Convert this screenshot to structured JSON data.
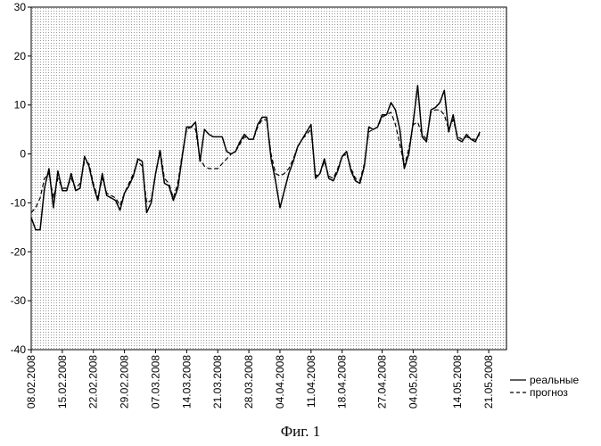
{
  "chart_data": {
    "type": "line",
    "title": "",
    "xlabel": "",
    "ylabel": "",
    "ylim": [
      -40,
      30
    ],
    "yticks": [
      30,
      20,
      10,
      0,
      -10,
      -20,
      -30,
      -40
    ],
    "xlim": [
      "08.02.2008",
      "25.05.2008"
    ],
    "xtick_labels": [
      "08.02.2008",
      "15.02.2008",
      "22.02.2008",
      "29.02.2008",
      "07.03.2008",
      "14.03.2008",
      "21.03.2008",
      "28.03.2008",
      "04.04.2008",
      "11.04.2008",
      "18.04.2008",
      "27.04.2008",
      "04.05.2008",
      "14.05.2008",
      "21.05.2008"
    ],
    "grid": "dense dotted",
    "legend_position": "right-bottom, outside plot",
    "colors": {
      "series": "#000000",
      "grid": "#9a9a9a",
      "background": "#ffffff"
    },
    "series": [
      {
        "name": "реальные",
        "style": "solid",
        "points": [
          [
            "08.02.2008",
            -13
          ],
          [
            "09.02.2008",
            -15.5
          ],
          [
            "10.02.2008",
            -15.5
          ],
          [
            "11.02.2008",
            -7
          ],
          [
            "12.02.2008",
            -3
          ],
          [
            "13.02.2008",
            -11
          ],
          [
            "14.02.2008",
            -3.5
          ],
          [
            "15.02.2008",
            -7.5
          ],
          [
            "16.02.2008",
            -7.5
          ],
          [
            "17.02.2008",
            -4
          ],
          [
            "18.02.2008",
            -7.5
          ],
          [
            "19.02.2008",
            -7
          ],
          [
            "20.02.2008",
            -0.5
          ],
          [
            "21.02.2008",
            -2.5
          ],
          [
            "22.02.2008",
            -6.5
          ],
          [
            "23.02.2008",
            -9.5
          ],
          [
            "24.02.2008",
            -4
          ],
          [
            "25.02.2008",
            -8.5
          ],
          [
            "26.02.2008",
            -9
          ],
          [
            "27.02.2008",
            -9.5
          ],
          [
            "28.02.2008",
            -11.5
          ],
          [
            "29.02.2008",
            -8
          ],
          [
            "01.03.2008",
            -6.5
          ],
          [
            "02.03.2008",
            -4.5
          ],
          [
            "03.03.2008",
            -1
          ],
          [
            "04.03.2008",
            -1.5
          ],
          [
            "05.03.2008",
            -12
          ],
          [
            "06.03.2008",
            -10
          ],
          [
            "07.03.2008",
            -4
          ],
          [
            "08.03.2008",
            0.5
          ],
          [
            "09.03.2008",
            -6
          ],
          [
            "10.03.2008",
            -6.5
          ],
          [
            "11.03.2008",
            -9.5
          ],
          [
            "12.03.2008",
            -7
          ],
          [
            "13.03.2008",
            -0.5
          ],
          [
            "14.03.2008",
            5.5
          ],
          [
            "15.03.2008",
            5.5
          ],
          [
            "16.03.2008",
            6.5
          ],
          [
            "17.03.2008",
            -1.5
          ],
          [
            "18.03.2008",
            5
          ],
          [
            "19.03.2008",
            4
          ],
          [
            "20.03.2008",
            3.5
          ],
          [
            "21.03.2008",
            3.5
          ],
          [
            "22.03.2008",
            3.5
          ],
          [
            "23.03.2008",
            0.5
          ],
          [
            "24.03.2008",
            0
          ],
          [
            "25.03.2008",
            0.5
          ],
          [
            "26.03.2008",
            2.5
          ],
          [
            "27.03.2008",
            4
          ],
          [
            "28.03.2008",
            3
          ],
          [
            "29.03.2008",
            3
          ],
          [
            "30.03.2008",
            6
          ],
          [
            "31.03.2008",
            7.5
          ],
          [
            "01.04.2008",
            7.5
          ],
          [
            "02.04.2008",
            -1
          ],
          [
            "03.04.2008",
            -5.5
          ],
          [
            "04.04.2008",
            -11
          ],
          [
            "05.04.2008",
            -7.5
          ],
          [
            "06.04.2008",
            -4
          ],
          [
            "07.04.2008",
            -1.5
          ],
          [
            "08.04.2008",
            1.5
          ],
          [
            "09.04.2008",
            3
          ],
          [
            "10.04.2008",
            4.5
          ],
          [
            "11.04.2008",
            6
          ],
          [
            "12.04.2008",
            -5
          ],
          [
            "13.04.2008",
            -4
          ],
          [
            "14.04.2008",
            -1
          ],
          [
            "15.04.2008",
            -5
          ],
          [
            "16.04.2008",
            -5.5
          ],
          [
            "17.04.2008",
            -3.5
          ],
          [
            "18.04.2008",
            -0.5
          ],
          [
            "19.04.2008",
            0.5
          ],
          [
            "20.04.2008",
            -3.5
          ],
          [
            "21.04.2008",
            -5.5
          ],
          [
            "22.04.2008",
            -6
          ],
          [
            "23.04.2008",
            -2.5
          ],
          [
            "24.04.2008",
            5.5
          ],
          [
            "25.04.2008",
            5
          ],
          [
            "26.04.2008",
            5.5
          ],
          [
            "27.04.2008",
            8
          ],
          [
            "28.04.2008",
            8
          ],
          [
            "29.04.2008",
            10.5
          ],
          [
            "30.04.2008",
            9
          ],
          [
            "01.05.2008",
            5
          ],
          [
            "02.05.2008",
            -3
          ],
          [
            "03.05.2008",
            0
          ],
          [
            "04.05.2008",
            6.5
          ],
          [
            "05.05.2008",
            14
          ],
          [
            "06.05.2008",
            3.5
          ],
          [
            "07.05.2008",
            2.5
          ],
          [
            "08.05.2008",
            9
          ],
          [
            "09.05.2008",
            9.5
          ],
          [
            "10.05.2008",
            10.5
          ],
          [
            "11.05.2008",
            13
          ],
          [
            "12.05.2008",
            4.5
          ],
          [
            "13.05.2008",
            8
          ],
          [
            "14.05.2008",
            3
          ],
          [
            "15.05.2008",
            2.5
          ],
          [
            "16.05.2008",
            4
          ],
          [
            "17.05.2008",
            3
          ],
          [
            "18.05.2008",
            2.5
          ],
          [
            "19.05.2008",
            4.5
          ]
        ]
      },
      {
        "name": "прогноз",
        "style": "dashed",
        "points": [
          [
            "08.02.2008",
            -12
          ],
          [
            "09.02.2008",
            -11
          ],
          [
            "10.02.2008",
            -9
          ],
          [
            "11.02.2008",
            -5
          ],
          [
            "12.02.2008",
            -4
          ],
          [
            "13.02.2008",
            -9
          ],
          [
            "14.02.2008",
            -5
          ],
          [
            "15.02.2008",
            -7
          ],
          [
            "16.02.2008",
            -7
          ],
          [
            "17.02.2008",
            -5
          ],
          [
            "18.02.2008",
            -7
          ],
          [
            "19.02.2008",
            -6
          ],
          [
            "20.02.2008",
            -1.5
          ],
          [
            "21.02.2008",
            -2
          ],
          [
            "22.02.2008",
            -6
          ],
          [
            "23.02.2008",
            -9
          ],
          [
            "24.02.2008",
            -5
          ],
          [
            "25.02.2008",
            -8
          ],
          [
            "26.02.2008",
            -8.5
          ],
          [
            "27.02.2008",
            -9
          ],
          [
            "28.02.2008",
            -10.5
          ],
          [
            "29.02.2008",
            -8
          ],
          [
            "01.03.2008",
            -6
          ],
          [
            "02.03.2008",
            -4
          ],
          [
            "03.03.2008",
            -1.5
          ],
          [
            "04.03.2008",
            -2.5
          ],
          [
            "05.03.2008",
            -10
          ],
          [
            "06.03.2008",
            -9.5
          ],
          [
            "07.03.2008",
            -4
          ],
          [
            "08.03.2008",
            1
          ],
          [
            "09.03.2008",
            -5
          ],
          [
            "10.03.2008",
            -6
          ],
          [
            "11.03.2008",
            -9
          ],
          [
            "12.03.2008",
            -6
          ],
          [
            "13.03.2008",
            0
          ],
          [
            "14.03.2008",
            5
          ],
          [
            "15.03.2008",
            5.5
          ],
          [
            "16.03.2008",
            5
          ],
          [
            "17.03.2008",
            -1
          ],
          [
            "18.03.2008",
            -2.5
          ],
          [
            "19.03.2008",
            -3
          ],
          [
            "20.03.2008",
            -3
          ],
          [
            "21.03.2008",
            -3
          ],
          [
            "22.03.2008",
            -2
          ],
          [
            "23.03.2008",
            -1
          ],
          [
            "24.03.2008",
            0
          ],
          [
            "25.03.2008",
            0.5
          ],
          [
            "26.03.2008",
            2
          ],
          [
            "27.03.2008",
            3.5
          ],
          [
            "28.03.2008",
            3
          ],
          [
            "29.03.2008",
            3
          ],
          [
            "30.03.2008",
            5.5
          ],
          [
            "31.03.2008",
            7
          ],
          [
            "01.04.2008",
            7
          ],
          [
            "02.04.2008",
            0
          ],
          [
            "03.04.2008",
            -4
          ],
          [
            "04.04.2008",
            -4.5
          ],
          [
            "05.04.2008",
            -4
          ],
          [
            "06.04.2008",
            -3
          ],
          [
            "07.04.2008",
            -1
          ],
          [
            "08.04.2008",
            1.5
          ],
          [
            "09.04.2008",
            3
          ],
          [
            "10.04.2008",
            4
          ],
          [
            "11.04.2008",
            5
          ],
          [
            "12.04.2008",
            -4.5
          ],
          [
            "13.04.2008",
            -4
          ],
          [
            "14.04.2008",
            -1.5
          ],
          [
            "15.04.2008",
            -4.5
          ],
          [
            "16.04.2008",
            -5
          ],
          [
            "17.04.2008",
            -3
          ],
          [
            "18.04.2008",
            -0.5
          ],
          [
            "19.04.2008",
            0
          ],
          [
            "20.04.2008",
            -3
          ],
          [
            "21.04.2008",
            -5
          ],
          [
            "22.04.2008",
            -5.5
          ],
          [
            "23.04.2008",
            -2
          ],
          [
            "24.04.2008",
            4.5
          ],
          [
            "25.04.2008",
            5
          ],
          [
            "26.04.2008",
            5.5
          ],
          [
            "27.04.2008",
            7.5
          ],
          [
            "28.04.2008",
            8
          ],
          [
            "29.04.2008",
            8.5
          ],
          [
            "30.04.2008",
            6
          ],
          [
            "01.05.2008",
            2
          ],
          [
            "02.05.2008",
            -2.5
          ],
          [
            "03.05.2008",
            1
          ],
          [
            "04.05.2008",
            6
          ],
          [
            "05.05.2008",
            6.5
          ],
          [
            "06.05.2008",
            4
          ],
          [
            "07.05.2008",
            3
          ],
          [
            "08.05.2008",
            8.5
          ],
          [
            "09.05.2008",
            9
          ],
          [
            "10.05.2008",
            9
          ],
          [
            "11.05.2008",
            8
          ],
          [
            "12.05.2008",
            5
          ],
          [
            "13.05.2008",
            7
          ],
          [
            "14.05.2008",
            3.5
          ],
          [
            "15.05.2008",
            3
          ],
          [
            "16.05.2008",
            3.5
          ],
          [
            "17.05.2008",
            3
          ],
          [
            "18.05.2008",
            3
          ],
          [
            "19.05.2008",
            4
          ]
        ]
      }
    ]
  },
  "caption": "Фиг. 1"
}
